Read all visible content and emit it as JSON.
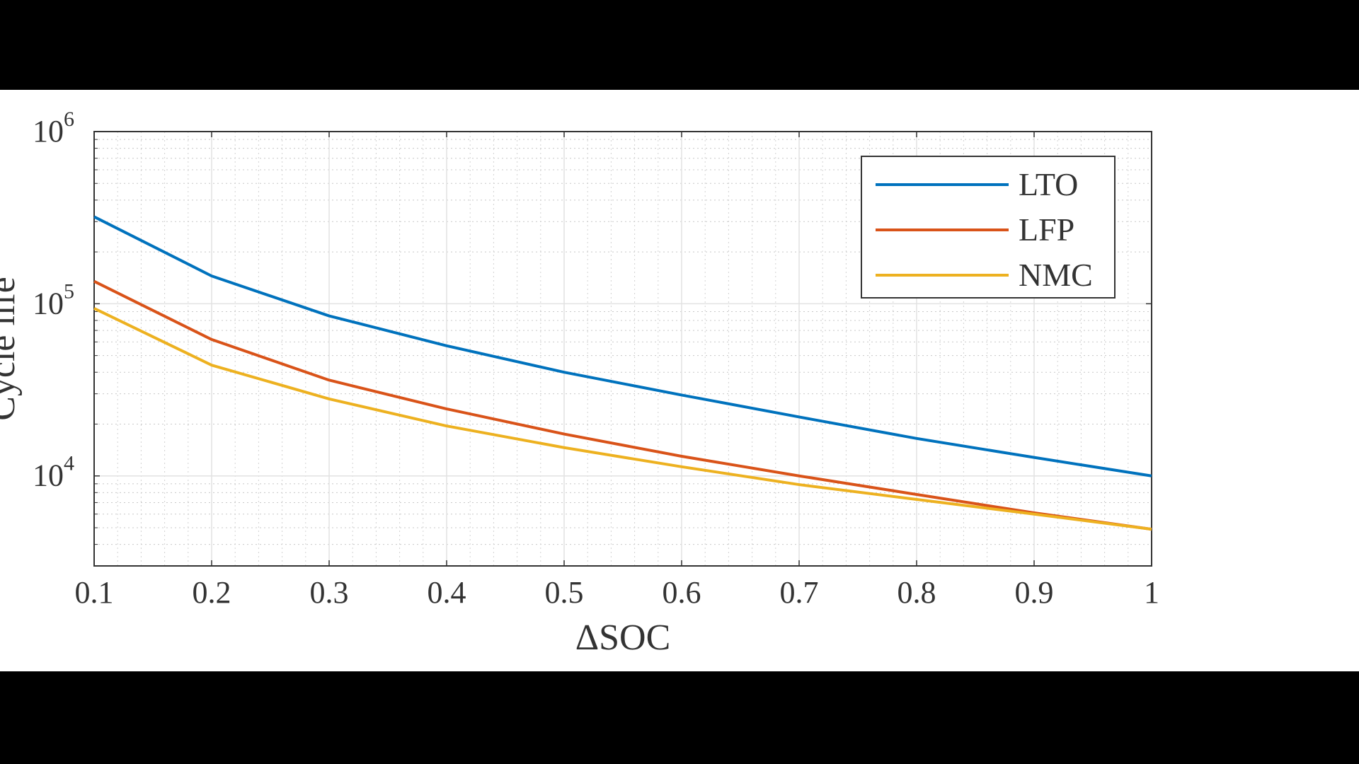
{
  "chart_data": {
    "type": "line",
    "xlabel": "ΔSOC",
    "ylabel": "Cycle life",
    "x": [
      0.1,
      0.2,
      0.3,
      0.4,
      0.5,
      0.6,
      0.7,
      0.8,
      0.9,
      1.0
    ],
    "x_ticks": [
      "0.1",
      "0.2",
      "0.3",
      "0.4",
      "0.5",
      "0.6",
      "0.7",
      "0.8",
      "0.9",
      "1"
    ],
    "y_scale": "log",
    "xlim": [
      0.1,
      1.0
    ],
    "ylim": [
      3000,
      1000000
    ],
    "y_ticks": [
      {
        "value": 10000,
        "base": "10",
        "exp": "4"
      },
      {
        "value": 100000,
        "base": "10",
        "exp": "5"
      },
      {
        "value": 1000000,
        "base": "10",
        "exp": "6"
      }
    ],
    "grid": true,
    "minor_grid": true,
    "legend_position": "top-right",
    "series": [
      {
        "name": "LTO",
        "color": "#0072BD",
        "values": [
          320000,
          145000,
          85000,
          57000,
          40000,
          29500,
          22000,
          16500,
          12800,
          10000
        ]
      },
      {
        "name": "LFP",
        "color": "#D95319",
        "values": [
          135000,
          62000,
          36000,
          24500,
          17500,
          13000,
          10000,
          7800,
          6100,
          4900
        ]
      },
      {
        "name": "NMC",
        "color": "#EDB120",
        "values": [
          94000,
          44000,
          28000,
          19500,
          14600,
          11300,
          8900,
          7300,
          6000,
          4900
        ]
      }
    ]
  }
}
